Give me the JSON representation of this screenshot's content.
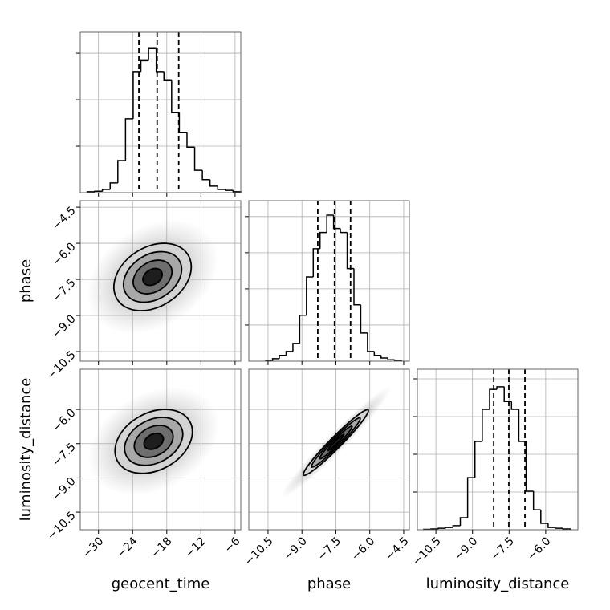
{
  "chart_data": {
    "type": "corner",
    "color": "#000000",
    "grid": true,
    "contour_levels": [
      2,
      1.5,
      1,
      0.5
    ],
    "contour_fills": [
      "#d4d4d4",
      "#a8a8a8",
      "#6e6e6e",
      "#1e1e1e"
    ],
    "parameters": [
      {
        "name": "geocent_time",
        "xlim": [
          -33.2,
          -5.0
        ],
        "ticks": [
          {
            "value": -30,
            "label": "−30"
          },
          {
            "value": -24,
            "label": "−24"
          },
          {
            "value": -18,
            "label": "−18"
          },
          {
            "value": -12,
            "label": "−12"
          },
          {
            "value": -6,
            "label": "−6"
          }
        ],
        "quantiles": [
          -22.9,
          -19.7,
          -15.9
        ],
        "hist": {
          "bins": [
            -32,
            -30.65,
            -29.3,
            -27.95,
            -26.6,
            -25.25,
            -23.9,
            -22.55,
            -21.2,
            -19.85,
            -18.5,
            -17.15,
            -15.8,
            -14.45,
            -13.1,
            -11.75,
            -10.4,
            -9.05,
            -7.7,
            -6.35,
            -5
          ],
          "values": [
            0.002,
            0.003,
            0.007,
            0.021,
            0.069,
            0.159,
            0.259,
            0.284,
            0.31,
            0.259,
            0.241,
            0.172,
            0.129,
            0.098,
            0.048,
            0.028,
            0.014,
            0.007,
            0.005,
            0.002
          ],
          "ylim": [
            0,
            0.345
          ],
          "yticks": [
            0.1,
            0.2,
            0.3
          ]
        }
      },
      {
        "name": "phase",
        "xlim": [
          -11.35,
          -4.25
        ],
        "ylim": [
          -10.9,
          -4.23
        ],
        "ticks": [
          {
            "value": -10.5,
            "label": "−10.5"
          },
          {
            "value": -9,
            "label": "−9.0"
          },
          {
            "value": -7.5,
            "label": "−7.5"
          },
          {
            "value": -6,
            "label": "−6.0"
          },
          {
            "value": -4.5,
            "label": "−4.5"
          }
        ],
        "quantiles": [
          -8.3,
          -7.56,
          -6.85
        ],
        "hist": {
          "bins": [
            -10.6,
            -10.3,
            -10.0,
            -9.7,
            -9.4,
            -9.1,
            -8.8,
            -8.5,
            -8.2,
            -7.9,
            -7.6,
            -7.3,
            -7.0,
            -6.7,
            -6.4,
            -6.1,
            -5.8,
            -5.5,
            -5.2,
            -4.9,
            -4.6
          ],
          "values": [
            0.001,
            0.007,
            0.016,
            0.027,
            0.049,
            0.127,
            0.233,
            0.311,
            0.356,
            0.404,
            0.367,
            0.356,
            0.256,
            0.156,
            0.078,
            0.027,
            0.016,
            0.009,
            0.004,
            0.001
          ],
          "ylim": [
            0,
            0.444
          ],
          "yticks": [
            0.1,
            0.2,
            0.3,
            0.4
          ]
        }
      },
      {
        "name": "luminosity_distance",
        "xlim": [
          -11.26,
          -4.68
        ],
        "ylim": [
          -11.27,
          -4.24
        ],
        "ticks": [
          {
            "value": -10.5,
            "label": "−10.5"
          },
          {
            "value": -9,
            "label": "−9.0"
          },
          {
            "value": -7.5,
            "label": "−7.5"
          },
          {
            "value": -6,
            "label": "−6.0"
          }
        ],
        "quantiles": [
          -8.13,
          -7.51,
          -6.85
        ],
        "hist": {
          "bins": [
            -11,
            -10.7,
            -10.4,
            -10.1,
            -9.8,
            -9.5,
            -9.2,
            -8.9,
            -8.6,
            -8.3,
            -8.0,
            -7.7,
            -7.4,
            -7.1,
            -6.8,
            -6.5,
            -6.2,
            -5.9,
            -5.6,
            -5.3,
            -5.0
          ],
          "values": [
            0.001,
            0.002,
            0.004,
            0.006,
            0.011,
            0.032,
            0.138,
            0.234,
            0.319,
            0.372,
            0.379,
            0.34,
            0.319,
            0.234,
            0.102,
            0.053,
            0.017,
            0.006,
            0.004,
            0.002
          ],
          "ylim": [
            0,
            0.4255
          ],
          "yticks": [
            0.1,
            0.2,
            0.3,
            0.4
          ]
        }
      }
    ],
    "pairs": [
      {
        "x": 0,
        "y": 1,
        "mean": [
          -20.5,
          -7.4
        ],
        "sd": [
          3.4,
          0.7
        ],
        "corr": 0.3
      },
      {
        "x": 0,
        "y": 2,
        "mean": [
          -20.3,
          -7.4
        ],
        "sd": [
          3.4,
          0.7
        ],
        "corr": 0.3
      },
      {
        "x": 1,
        "y": 2,
        "mean": [
          -7.5,
          -7.45
        ],
        "sd": [
          0.72,
          0.72
        ],
        "corr": 0.97
      }
    ]
  }
}
